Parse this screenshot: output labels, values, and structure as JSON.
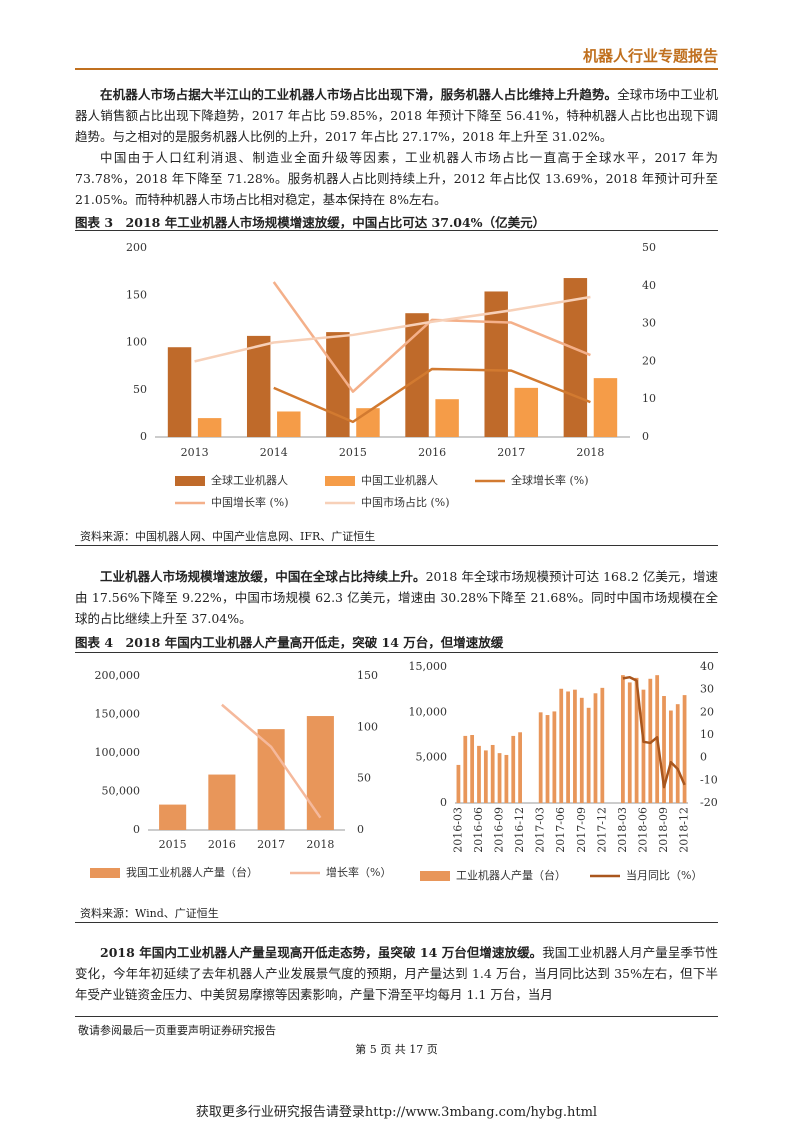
{
  "header": {
    "title": "机器人行业专题报告"
  },
  "paragraphs": [
    {
      "lead": "在机器人市场占据大半江山的工业机器人市场占比出现下滑，服务机器人占比维持上升趋势。",
      "text": "全球市场中工业机器人销售额占比出现下降趋势，2017 年占比 59.85%，2018 年预计下降至 56.41%，特种机器人占比也出现下调趋势。与之相对的是服务机器人比例的上升，2017 年占比 27.17%，2018 年上升至 31.02%。"
    },
    {
      "text": "中国由于人口红利消退、制造业全面升级等因素，工业机器人市场占比一直高于全球水平，2017 年为 73.78%，2018 年下降至 71.28%。服务机器人占比则持续上升，2012 年占比仅 13.69%，2018 年预计可升至 21.05%。而特种机器人市场占比相对稳定，基本保持在 8%左右。"
    },
    {
      "lead": "工业机器人市场规模增速放缓，中国在全球占比持续上升。",
      "text": "2018 年全球市场规模预计可达 168.2 亿美元，增速由 17.56%下降至 9.22%，中国市场规模 62.3 亿美元，增速由 30.28%下降至 21.68%。同时中国市场规模在全球的占比继续上升至 37.04%。"
    },
    {
      "lead": "2018 年国内工业机器人产量呈现高开低走态势，虽突破 14 万台但增速放缓。",
      "text": "我国工业机器人月产量呈季节性变化，今年年初延续了去年机器人产业发展景气度的预期，月产量达到 1.4 万台，当月同比达到 35%左右，但下半年受产业链资金压力、中美贸易摩擦等因素影响，产量下滑至平均每月 1.1 万台，当月"
    }
  ],
  "chart_data": [
    {
      "type": "combo",
      "title": "图表 3　2018 年工业机器人市场规模增速放缓，中国占比可达 37.04%（亿美元）",
      "categories": [
        "2013",
        "2014",
        "2015",
        "2016",
        "2017",
        "2018"
      ],
      "series": [
        {
          "name": "全球工业机器人",
          "type": "bar",
          "color": "#bf6a2a",
          "values": [
            95,
            107,
            111,
            131,
            154,
            168.2
          ]
        },
        {
          "name": "中国工业机器人",
          "type": "bar",
          "color": "#f59c48",
          "values": [
            20,
            27,
            30.5,
            40,
            52,
            62.3
          ]
        },
        {
          "name": "全球增长率 (%)",
          "type": "line",
          "axis": "y2",
          "color": "#d27a30",
          "values": [
            null,
            13,
            4,
            18,
            17.56,
            9.22
          ]
        },
        {
          "name": "中国增长率 (%)",
          "type": "line",
          "axis": "y2",
          "color": "#f4b08a",
          "values": [
            null,
            41,
            12,
            31,
            30.28,
            21.68
          ]
        },
        {
          "name": "中国市场占比 (%)",
          "type": "line",
          "axis": "y2",
          "color": "#f7d0b8",
          "values": [
            20,
            25,
            27,
            30.5,
            33.5,
            37.04
          ]
        }
      ],
      "ylim": [
        0,
        200
      ],
      "yticks": [
        0,
        50,
        100,
        150,
        200
      ],
      "y2lim": [
        0,
        50
      ],
      "y2ticks": [
        0,
        10,
        20,
        30,
        40,
        50
      ],
      "grid": false
    },
    {
      "type": "combo",
      "title": "图表 4　2018 年国内工业机器人产量高开低走，突破 14 万台，但增速放缓",
      "categories": [
        "2015",
        "2016",
        "2017",
        "2018"
      ],
      "series": [
        {
          "name": "我国工业机器人产量（台）",
          "type": "bar",
          "color": "#e8965a",
          "values": [
            33000,
            72000,
            131000,
            148000
          ]
        },
        {
          "name": "增长率（%）",
          "type": "line",
          "axis": "y2",
          "color": "#f5b99c",
          "values": [
            null,
            122,
            81,
            12
          ]
        }
      ],
      "ylim": [
        0,
        200000
      ],
      "yticks": [
        0,
        {
          "value": 50000,
          "label": "50,000"
        },
        {
          "value": 100000,
          "label": "100,000"
        },
        {
          "value": 150000,
          "label": "150,000"
        },
        {
          "value": 200000,
          "label": "200,000"
        }
      ],
      "y2lim": [
        0,
        150
      ],
      "y2ticks": [
        0,
        50,
        100,
        150
      ],
      "grid": false
    },
    {
      "type": "combo",
      "categories": [
        "2016-03",
        null,
        null,
        "2016-06",
        null,
        null,
        "2016-09",
        null,
        null,
        "2016-12",
        null,
        null,
        "2017-03",
        null,
        null,
        "2017-06",
        null,
        null,
        "2017-09",
        null,
        null,
        "2017-12",
        null,
        null,
        "2018-03",
        null,
        null,
        "2018-06",
        null,
        null,
        "2018-09",
        null,
        null,
        "2018-12"
      ],
      "series": [
        {
          "name": "工业机器人产量（台）",
          "type": "bar",
          "color": "#e8965a",
          "values": [
            4200,
            7400,
            7500,
            6300,
            5800,
            6400,
            5500,
            5300,
            7400,
            7800,
            null,
            null,
            10000,
            9700,
            10100,
            12600,
            12300,
            12500,
            11600,
            10500,
            12100,
            12700,
            null,
            null,
            14100,
            13300,
            13800,
            12500,
            13700,
            14100,
            11800,
            10200,
            10900,
            11900
          ]
        },
        {
          "name": "当月同比（%）",
          "type": "line",
          "axis": "y2",
          "color": "#a9561d",
          "values": [
            null,
            null,
            null,
            null,
            null,
            null,
            null,
            null,
            null,
            null,
            null,
            null,
            null,
            null,
            null,
            null,
            null,
            null,
            null,
            null,
            null,
            null,
            null,
            null,
            35,
            35.5,
            34,
            7,
            6.5,
            9,
            -13,
            -2,
            -5,
            -12
          ]
        }
      ],
      "ylim": [
        0,
        15000
      ],
      "yticks": [
        0,
        {
          "value": 5000,
          "label": "5,000"
        },
        {
          "value": 10000,
          "label": "10,000"
        },
        {
          "value": 15000,
          "label": "15,000"
        }
      ],
      "y2lim": [
        -20,
        40
      ],
      "y2ticks": [
        -20,
        -10,
        0,
        10,
        20,
        30,
        40
      ],
      "grid": false
    }
  ],
  "sources": [
    "资料来源：中国机器人网、中国产业信息网、IFR、广证恒生",
    "资料来源：Wind、广证恒生"
  ],
  "footer": {
    "disclaimer": "敬请参阅最后一页重要声明证券研究报告",
    "page": "第 5 页 共 17 页",
    "link": "获取更多行业研究报告请登录http://www.3mbang.com/hybg.html"
  }
}
